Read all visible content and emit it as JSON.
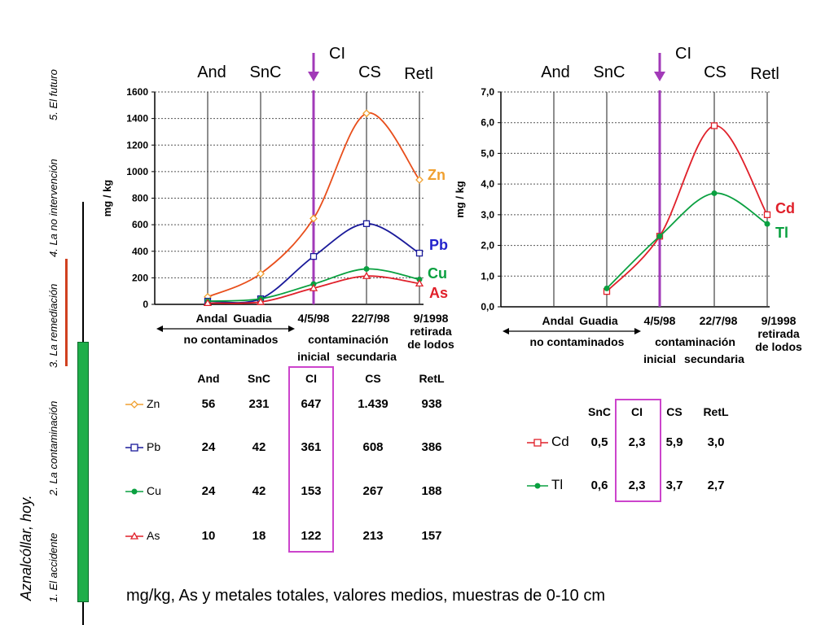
{
  "side": {
    "title": "Aznalcóllar, hoy.",
    "sections": [
      "1. El accidente",
      "2. La contaminación",
      "3. La remediación",
      "4. La no intervención",
      "5. El futuro"
    ]
  },
  "chart_data": [
    {
      "type": "line",
      "title": "",
      "ylabel": "mg / kg",
      "ylim": [
        0,
        1600
      ],
      "yticks": [
        "0",
        "200",
        "400",
        "600",
        "800",
        "1000",
        "1200",
        "1400",
        "1600"
      ],
      "top_labels": [
        "And",
        "SnC",
        "CS",
        "Retl"
      ],
      "event_label": "CI",
      "x_labels": [
        "Andal",
        "Guadia",
        "4/5/98",
        "22/7/98",
        "9/1998"
      ],
      "x_sublabels": {
        "no_cont": "no contaminados",
        "cont": "contaminación",
        "inicial": "inicial",
        "secundaria": "secundaria",
        "retirada": "retirada",
        "de_lodos": "de lodos"
      },
      "series": [
        {
          "name": "Zn",
          "color": "#e84e1b",
          "marker_color": "#f0a030",
          "label_color": "#f0a030",
          "values": [
            56,
            231,
            647,
            1439,
            938
          ]
        },
        {
          "name": "Pb",
          "color": "#1a1a9a",
          "marker_color": "#1a1a9a",
          "label_color": "#2222cc",
          "values": [
            24,
            42,
            361,
            608,
            386
          ]
        },
        {
          "name": "Cu",
          "color": "#0aa040",
          "marker_color": "#0aa040",
          "label_color": "#0aa040",
          "values": [
            24,
            42,
            153,
            267,
            188
          ]
        },
        {
          "name": "As",
          "color": "#e0202a",
          "marker_color": "#e0202a",
          "label_color": "#e0202a",
          "values": [
            10,
            18,
            122,
            213,
            157
          ]
        }
      ]
    },
    {
      "type": "line",
      "title": "",
      "ylabel": "mg / kg",
      "ylim": [
        0,
        7
      ],
      "yticks": [
        "0,0",
        "1,0",
        "2,0",
        "3,0",
        "4,0",
        "5,0",
        "6,0",
        "7,0"
      ],
      "top_labels": [
        "And",
        "SnC",
        "CS",
        "Retl"
      ],
      "event_label": "CI",
      "x_labels": [
        "Andal",
        "Guadia",
        "4/5/98",
        "22/7/98",
        "9/1998"
      ],
      "x_sublabels": {
        "no_cont": "no contaminados",
        "cont": "contaminación",
        "inicial": "inicial",
        "secundaria": "secundaria",
        "retirada": "retirada",
        "de_lodos": "de lodos"
      },
      "series": [
        {
          "name": "Cd",
          "color": "#e0202a",
          "marker_color": "#e0202a",
          "label_color": "#e0202a",
          "values": [
            null,
            0.5,
            2.3,
            5.9,
            3.0
          ]
        },
        {
          "name": "Tl",
          "color": "#0aa040",
          "marker_color": "#0aa040",
          "label_color": "#0aa040",
          "values": [
            null,
            0.6,
            2.3,
            3.7,
            2.7
          ]
        }
      ]
    }
  ],
  "table1": {
    "headers": [
      "And",
      "SnC",
      "CI",
      "CS",
      "RetL"
    ],
    "rows": [
      {
        "name": "Zn",
        "values": [
          "56",
          "231",
          "647",
          "1.439",
          "938"
        ]
      },
      {
        "name": "Pb",
        "values": [
          "24",
          "42",
          "361",
          "608",
          "386"
        ]
      },
      {
        "name": "Cu",
        "values": [
          "24",
          "42",
          "153",
          "267",
          "188"
        ]
      },
      {
        "name": "As",
        "values": [
          "10",
          "18",
          "122",
          "213",
          "157"
        ]
      }
    ]
  },
  "table2": {
    "headers": [
      "SnC",
      "CI",
      "CS",
      "RetL"
    ],
    "rows": [
      {
        "name": "Cd",
        "values": [
          "0,5",
          "2,3",
          "5,9",
          "3,0"
        ]
      },
      {
        "name": "Tl",
        "values": [
          "0,6",
          "2,3",
          "3,7",
          "2,7"
        ]
      }
    ]
  },
  "footer": "mg/kg,  As y metales totales, valores medios, muestras de 0-10 cm",
  "colors": {
    "purple": "#9b30b8",
    "box": "#cc44cc",
    "green_bar": "#1fae4a",
    "red_line": "#d04020"
  }
}
